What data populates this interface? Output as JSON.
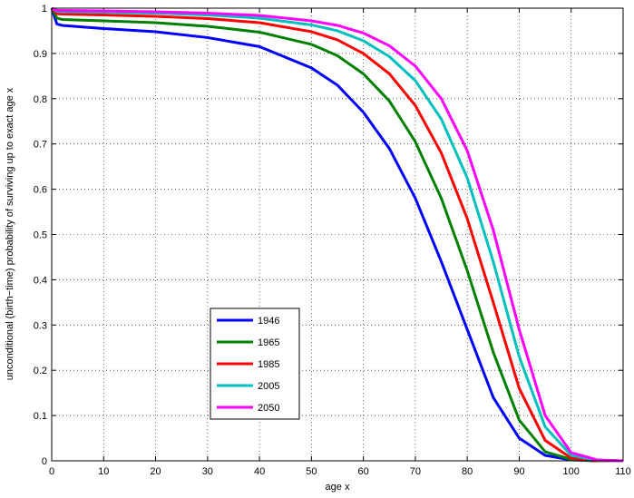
{
  "chart_data": {
    "type": "line",
    "xlabel": "age x",
    "ylabel": "unconditional (birth−time) probability of surviving up to exact age x",
    "x": [
      0,
      1,
      2,
      10,
      20,
      30,
      40,
      50,
      55,
      60,
      65,
      70,
      75,
      80,
      85,
      90,
      95,
      100,
      105,
      110
    ],
    "series": [
      {
        "name": "1946",
        "color": "#0000ff",
        "values": [
          1,
          0.965,
          0.962,
          0.955,
          0.948,
          0.935,
          0.915,
          0.868,
          0.83,
          0.77,
          0.69,
          0.58,
          0.44,
          0.29,
          0.14,
          0.05,
          0.012,
          0.002,
          0,
          0
        ]
      },
      {
        "name": "1965",
        "color": "#008000",
        "values": [
          1,
          0.978,
          0.975,
          0.972,
          0.968,
          0.96,
          0.947,
          0.92,
          0.895,
          0.855,
          0.795,
          0.705,
          0.58,
          0.42,
          0.24,
          0.09,
          0.02,
          0.003,
          0,
          0
        ]
      },
      {
        "name": "1985",
        "color": "#ff0000",
        "values": [
          1,
          0.988,
          0.987,
          0.985,
          0.982,
          0.977,
          0.968,
          0.948,
          0.93,
          0.9,
          0.855,
          0.785,
          0.68,
          0.535,
          0.35,
          0.16,
          0.045,
          0.006,
          0,
          0
        ]
      },
      {
        "name": "2005",
        "color": "#00bfbf",
        "values": [
          1,
          0.993,
          0.992,
          0.991,
          0.989,
          0.985,
          0.978,
          0.963,
          0.95,
          0.928,
          0.893,
          0.84,
          0.755,
          0.625,
          0.44,
          0.23,
          0.075,
          0.012,
          0.001,
          0
        ]
      },
      {
        "name": "2050",
        "color": "#ff00ff",
        "values": [
          1,
          0.995,
          0.995,
          0.994,
          0.992,
          0.989,
          0.984,
          0.972,
          0.962,
          0.945,
          0.917,
          0.872,
          0.8,
          0.685,
          0.51,
          0.29,
          0.1,
          0.018,
          0.002,
          0
        ]
      }
    ],
    "xlim": [
      0,
      110
    ],
    "xticks": [
      0,
      10,
      20,
      30,
      40,
      50,
      60,
      70,
      80,
      90,
      100,
      110
    ],
    "ylim": [
      0,
      1
    ],
    "yticks": [
      0,
      0.1,
      0.2,
      0.3,
      0.4,
      0.5,
      0.6,
      0.7,
      0.8,
      0.9,
      1
    ],
    "grid": true,
    "legend": "lower-left"
  }
}
